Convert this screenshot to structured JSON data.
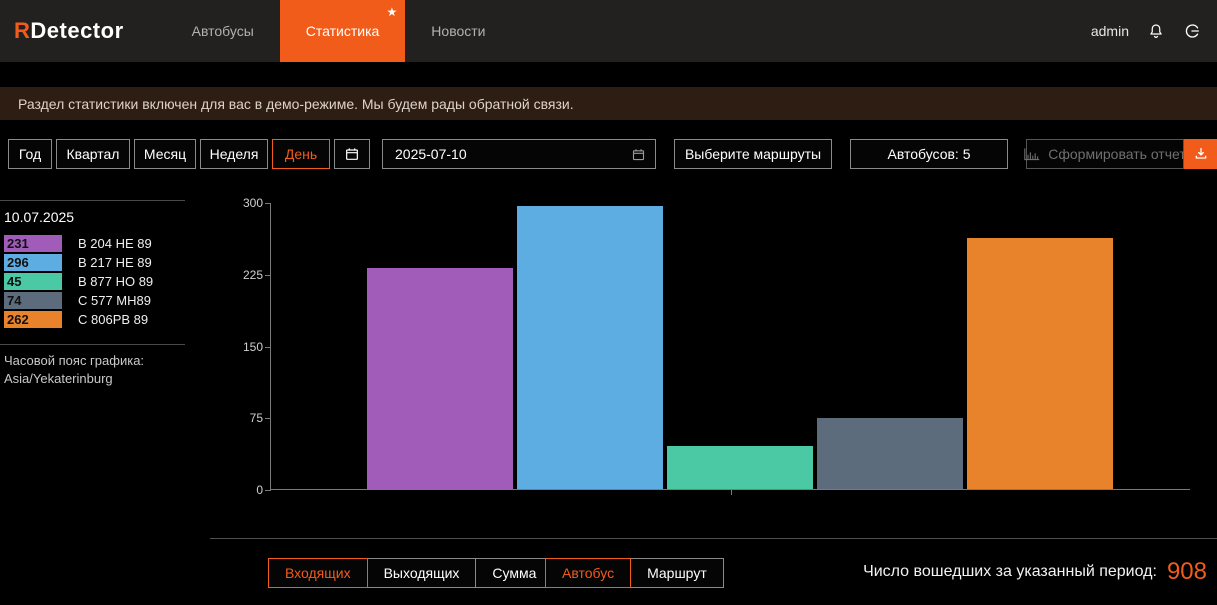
{
  "header": {
    "logo_prefix": "R",
    "logo_rest": "Detector",
    "nav": [
      {
        "label": "Автобусы",
        "active": false
      },
      {
        "label": "Статистика",
        "active": true
      },
      {
        "label": "Новости",
        "active": false
      }
    ],
    "user": "admin",
    "icons": {
      "star": "★"
    }
  },
  "banner": {
    "text": "Раздел статистики включен для вас в демо-режиме. Мы будем рады обратной связи."
  },
  "filters": {
    "periods": [
      {
        "label": "Год",
        "active": false
      },
      {
        "label": "Квартал",
        "active": false
      },
      {
        "label": "Месяц",
        "active": false
      },
      {
        "label": "Неделя",
        "active": false
      },
      {
        "label": "День",
        "active": true
      }
    ],
    "date_value": "2025-07-10",
    "routes_button": "Выберите маршруты",
    "buses_button": "Автобусов: 5",
    "report_button": "Сформировать отчет"
  },
  "legend": {
    "date": "10.07.2025",
    "items": [
      {
        "value": "231",
        "label": "В 204 НЕ 89",
        "color": "#a05cb8"
      },
      {
        "value": "296",
        "label": "В 217 НЕ 89",
        "color": "#5dade2"
      },
      {
        "value": "45",
        "label": "В 877 НО 89",
        "color": "#4bc9a4"
      },
      {
        "value": "74",
        "label": "С 577 МН89",
        "color": "#5d6c7c"
      },
      {
        "value": "262",
        "label": "С 806РВ 89",
        "color": "#e8832b"
      }
    ],
    "timezone_label": "Часовой пояс графика:",
    "timezone": "Asia/Yekaterinburg"
  },
  "chart_data": {
    "type": "bar",
    "categories": [
      "В 204 НЕ 89",
      "В 217 НЕ 89",
      "В 877 НО 89",
      "С 577 МН89",
      "С 806РВ 89"
    ],
    "values": [
      231,
      296,
      45,
      74,
      262
    ],
    "colors": [
      "#a05cb8",
      "#5dade2",
      "#4bc9a4",
      "#5d6c7c",
      "#e8832b"
    ],
    "title": "",
    "xlabel": "",
    "ylabel": "",
    "ylim": [
      0,
      300
    ],
    "yticks": [
      0,
      75,
      150,
      225,
      300
    ],
    "grid": false,
    "legend_position": "left"
  },
  "footer": {
    "mode_buttons": [
      {
        "label": "Входящих",
        "active": true
      },
      {
        "label": "Выходящих",
        "active": false
      },
      {
        "label": "Сумма",
        "active": false
      }
    ],
    "group_buttons": [
      {
        "label": "Автобус",
        "active": true
      },
      {
        "label": "Маршрут",
        "active": false
      }
    ],
    "total_label": "Число вошедших за указанный период:",
    "total_value": "908"
  },
  "colors": {
    "accent": "#f25c1a",
    "header_bg": "#232120",
    "banner_bg": "#2e1d13",
    "background": "#000000"
  }
}
